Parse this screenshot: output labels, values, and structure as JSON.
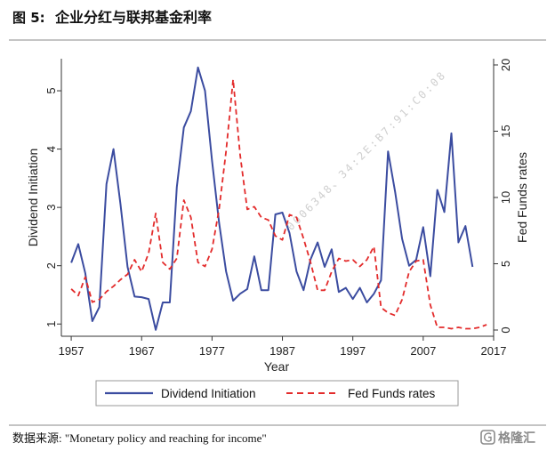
{
  "header": {
    "figure_label": "图 5:",
    "title": "企业分红与联邦基金利率"
  },
  "source": {
    "text": "数据来源: \"Monetary policy and reaching for income\""
  },
  "logo": {
    "text": "格隆汇"
  },
  "watermark": {
    "text": "0006348、34:2E:B7:91:C0:08"
  },
  "chart_data": {
    "type": "line",
    "title": "",
    "xlabel": "Year",
    "ylabel_left": "Dividend Initiation",
    "ylabel_right": "Fed Funds rates",
    "xlim": [
      1955.6,
      2017
    ],
    "ylim_left": [
      0.79,
      5.55
    ],
    "ylim_right": [
      -0.47,
      20.47
    ],
    "x_ticks": [
      1957,
      1967,
      1977,
      1987,
      1997,
      2007,
      2017
    ],
    "y_left_ticks": [
      1,
      2,
      3,
      4,
      5
    ],
    "y_right_ticks": [
      0,
      5,
      10,
      15,
      20
    ],
    "grid": false,
    "legend": {
      "position": "bottom"
    },
    "series": [
      {
        "name": "Dividend Initiation",
        "axis": "left",
        "color": "#3b4ca0",
        "style": "solid",
        "x": [
          1957,
          1958,
          1959,
          1960,
          1961,
          1962,
          1963,
          1964,
          1965,
          1966,
          1967,
          1968,
          1969,
          1970,
          1971,
          1972,
          1973,
          1974,
          1975,
          1976,
          1977,
          1978,
          1979,
          1980,
          1981,
          1982,
          1983,
          1984,
          1985,
          1986,
          1987,
          1988,
          1989,
          1990,
          1991,
          1992,
          1993,
          1994,
          1995,
          1996,
          1997,
          1998,
          1999,
          2000,
          2001,
          2002,
          2003,
          2004,
          2005,
          2006,
          2007,
          2008,
          2009,
          2010,
          2011,
          2012,
          2013,
          2014
        ],
        "values": [
          2.05,
          2.37,
          1.87,
          1.05,
          1.29,
          3.4,
          4.0,
          3.05,
          1.98,
          1.47,
          1.46,
          1.43,
          0.9,
          1.37,
          1.37,
          3.35,
          4.37,
          4.65,
          5.4,
          5.0,
          3.8,
          2.74,
          1.9,
          1.4,
          1.52,
          1.6,
          2.16,
          1.58,
          1.58,
          2.88,
          2.91,
          2.56,
          1.9,
          1.58,
          2.11,
          2.4,
          1.98,
          2.28,
          1.55,
          1.62,
          1.43,
          1.62,
          1.37,
          1.52,
          1.75,
          3.96,
          3.27,
          2.46,
          2.0,
          2.1,
          2.66,
          1.82,
          3.3,
          2.92,
          4.27,
          2.4,
          2.68,
          1.98
        ]
      },
      {
        "name": "Fed Funds rates",
        "axis": "right",
        "color": "#e32b2b",
        "style": "dashed",
        "x": [
          1957,
          1958,
          1959,
          1960,
          1961,
          1962,
          1963,
          1964,
          1965,
          1966,
          1967,
          1968,
          1969,
          1970,
          1971,
          1972,
          1973,
          1974,
          1975,
          1976,
          1977,
          1978,
          1979,
          1980,
          1981,
          1982,
          1983,
          1984,
          1985,
          1986,
          1987,
          1988,
          1989,
          1990,
          1991,
          1992,
          1993,
          1994,
          1995,
          1996,
          1997,
          1998,
          1999,
          2000,
          2001,
          2002,
          2003,
          2004,
          2005,
          2006,
          2007,
          2008,
          2009,
          2010,
          2011,
          2012,
          2013,
          2014,
          2015,
          2016
        ],
        "values": [
          3.1,
          2.6,
          4.0,
          2.1,
          2.3,
          2.9,
          3.3,
          3.8,
          4.2,
          5.3,
          4.4,
          5.8,
          8.8,
          5.1,
          4.6,
          5.4,
          9.8,
          8.5,
          5.1,
          4.8,
          6.1,
          9.1,
          13.5,
          18.9,
          13.2,
          9.1,
          9.3,
          8.5,
          8.3,
          7.1,
          6.8,
          8.7,
          8.5,
          6.9,
          5.1,
          3.0,
          3.0,
          4.4,
          5.4,
          5.2,
          5.3,
          4.8,
          5.3,
          6.3,
          1.7,
          1.3,
          1.1,
          2.3,
          4.4,
          5.2,
          5.3,
          1.9,
          0.2,
          0.2,
          0.1,
          0.2,
          0.1,
          0.1,
          0.2,
          0.4
        ]
      }
    ]
  }
}
